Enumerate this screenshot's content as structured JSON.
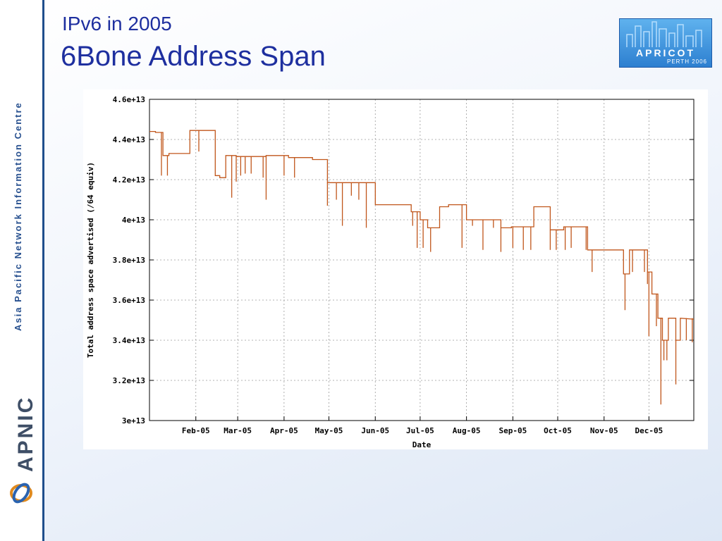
{
  "slide": {
    "subtitle": "IPv6 in 2005",
    "title": "6Bone Address Span",
    "sidebar_text": "Asia Pacific Network Information Centre",
    "sidebar_logo_text": "APNIC",
    "badge_title": "APRICOT",
    "badge_subtitle": "PERTH 2006"
  },
  "chart_data": {
    "type": "line",
    "xlabel": "Date",
    "ylabel": "Total address space advertised (/64 equiv)",
    "x_range": [
      "2005-01-01",
      "2005-12-31"
    ],
    "ylim": [
      30000000000000,
      46000000000000
    ],
    "grid": true,
    "y_ticks": [
      "3e+13",
      "3.2e+13",
      "3.4e+13",
      "3.6e+13",
      "3.8e+13",
      "4e+13",
      "4.2e+13",
      "4.4e+13",
      "4.6e+13"
    ],
    "y_tick_values": [
      30000000000000,
      32000000000000,
      34000000000000,
      36000000000000,
      38000000000000,
      40000000000000,
      42000000000000,
      44000000000000,
      46000000000000
    ],
    "x_ticks": [
      {
        "label": "Feb-05",
        "date": "2005-02-01"
      },
      {
        "label": "Mar-05",
        "date": "2005-03-01"
      },
      {
        "label": "Apr-05",
        "date": "2005-04-01"
      },
      {
        "label": "May-05",
        "date": "2005-05-01"
      },
      {
        "label": "Jun-05",
        "date": "2005-06-01"
      },
      {
        "label": "Jul-05",
        "date": "2005-07-01"
      },
      {
        "label": "Aug-05",
        "date": "2005-08-01"
      },
      {
        "label": "Sep-05",
        "date": "2005-09-01"
      },
      {
        "label": "Oct-05",
        "date": "2005-10-01"
      },
      {
        "label": "Nov-05",
        "date": "2005-11-01"
      },
      {
        "label": "Dec-05",
        "date": "2005-12-01"
      }
    ],
    "series": [
      {
        "color": "#c0561b",
        "points": [
          [
            "2005-01-01",
            44400000000000
          ],
          [
            "2005-01-05",
            44400000000000
          ],
          [
            "2005-01-05",
            44350000000000
          ],
          [
            "2005-01-10",
            44350000000000
          ],
          [
            "2005-01-10",
            43200000000000
          ],
          [
            "2005-01-14",
            43200000000000
          ],
          [
            "2005-01-14",
            43300000000000
          ],
          [
            "2005-01-28",
            43300000000000
          ],
          [
            "2005-01-28",
            44450000000000
          ],
          [
            "2005-02-14",
            44450000000000
          ],
          [
            "2005-02-14",
            42200000000000
          ],
          [
            "2005-02-17",
            42200000000000
          ],
          [
            "2005-02-17",
            42100000000000
          ],
          [
            "2005-02-21",
            42100000000000
          ],
          [
            "2005-02-21",
            43200000000000
          ],
          [
            "2005-02-28",
            43200000000000
          ],
          [
            "2005-02-28",
            43150000000000
          ],
          [
            "2005-03-20",
            43150000000000
          ],
          [
            "2005-03-20",
            43200000000000
          ],
          [
            "2005-04-04",
            43200000000000
          ],
          [
            "2005-04-04",
            43100000000000
          ],
          [
            "2005-04-20",
            43100000000000
          ],
          [
            "2005-04-20",
            43000000000000
          ],
          [
            "2005-04-30",
            43000000000000
          ],
          [
            "2005-04-30",
            41850000000000
          ],
          [
            "2005-06-01",
            41850000000000
          ],
          [
            "2005-06-01",
            40750000000000
          ],
          [
            "2005-06-25",
            40750000000000
          ],
          [
            "2005-06-25",
            40400000000000
          ],
          [
            "2005-07-01",
            40400000000000
          ],
          [
            "2005-07-01",
            40000000000000
          ],
          [
            "2005-07-06",
            40000000000000
          ],
          [
            "2005-07-06",
            39600000000000
          ],
          [
            "2005-07-14",
            39600000000000
          ],
          [
            "2005-07-14",
            40650000000000
          ],
          [
            "2005-07-20",
            40650000000000
          ],
          [
            "2005-07-20",
            40750000000000
          ],
          [
            "2005-08-01",
            40750000000000
          ],
          [
            "2005-08-01",
            40000000000000
          ],
          [
            "2005-08-24",
            40000000000000
          ],
          [
            "2005-08-24",
            39600000000000
          ],
          [
            "2005-08-31",
            39600000000000
          ],
          [
            "2005-08-31",
            39650000000000
          ],
          [
            "2005-09-15",
            39650000000000
          ],
          [
            "2005-09-15",
            40650000000000
          ],
          [
            "2005-09-26",
            40650000000000
          ],
          [
            "2005-09-26",
            39500000000000
          ],
          [
            "2005-10-05",
            39500000000000
          ],
          [
            "2005-10-05",
            39650000000000
          ],
          [
            "2005-10-21",
            39650000000000
          ],
          [
            "2005-10-21",
            38500000000000
          ],
          [
            "2005-11-14",
            38500000000000
          ],
          [
            "2005-11-14",
            37300000000000
          ],
          [
            "2005-11-18",
            37300000000000
          ],
          [
            "2005-11-18",
            38500000000000
          ],
          [
            "2005-11-30",
            38500000000000
          ],
          [
            "2005-11-30",
            37400000000000
          ],
          [
            "2005-12-03",
            37400000000000
          ],
          [
            "2005-12-03",
            36300000000000
          ],
          [
            "2005-12-07",
            36300000000000
          ],
          [
            "2005-12-07",
            35100000000000
          ],
          [
            "2005-12-10",
            35100000000000
          ],
          [
            "2005-12-10",
            34000000000000
          ],
          [
            "2005-12-14",
            34000000000000
          ],
          [
            "2005-12-14",
            35100000000000
          ],
          [
            "2005-12-19",
            35100000000000
          ],
          [
            "2005-12-19",
            34000000000000
          ],
          [
            "2005-12-22",
            34000000000000
          ],
          [
            "2005-12-22",
            35100000000000
          ],
          [
            "2005-12-31",
            35050000000000
          ]
        ],
        "spikes": [
          [
            "2005-01-09",
            42200000000000
          ],
          [
            "2005-01-13",
            42200000000000
          ],
          [
            "2005-02-03",
            43400000000000
          ],
          [
            "2005-02-25",
            41100000000000
          ],
          [
            "2005-02-28",
            41900000000000
          ],
          [
            "2005-03-03",
            42200000000000
          ],
          [
            "2005-03-06",
            42300000000000
          ],
          [
            "2005-03-10",
            42300000000000
          ],
          [
            "2005-03-18",
            42100000000000
          ],
          [
            "2005-03-20",
            41000000000000
          ],
          [
            "2005-04-01",
            42200000000000
          ],
          [
            "2005-04-08",
            42100000000000
          ],
          [
            "2005-04-30",
            40700000000000
          ],
          [
            "2005-05-06",
            41000000000000
          ],
          [
            "2005-05-10",
            39700000000000
          ],
          [
            "2005-05-16",
            41200000000000
          ],
          [
            "2005-05-21",
            41000000000000
          ],
          [
            "2005-05-26",
            39600000000000
          ],
          [
            "2005-06-26",
            39700000000000
          ],
          [
            "2005-06-29",
            38600000000000
          ],
          [
            "2005-07-03",
            38600000000000
          ],
          [
            "2005-07-08",
            38400000000000
          ],
          [
            "2005-07-29",
            38600000000000
          ],
          [
            "2005-08-05",
            39700000000000
          ],
          [
            "2005-08-12",
            38500000000000
          ],
          [
            "2005-08-19",
            39600000000000
          ],
          [
            "2005-08-24",
            38400000000000
          ],
          [
            "2005-09-01",
            38600000000000
          ],
          [
            "2005-09-08",
            38500000000000
          ],
          [
            "2005-09-13",
            38500000000000
          ],
          [
            "2005-09-26",
            38500000000000
          ],
          [
            "2005-09-30",
            38500000000000
          ],
          [
            "2005-10-06",
            38500000000000
          ],
          [
            "2005-10-10",
            38600000000000
          ],
          [
            "2005-10-20",
            38500000000000
          ],
          [
            "2005-10-24",
            37400000000000
          ],
          [
            "2005-11-15",
            35500000000000
          ],
          [
            "2005-11-20",
            37400000000000
          ],
          [
            "2005-11-28",
            37400000000000
          ],
          [
            "2005-11-30",
            36800000000000
          ],
          [
            "2005-12-01",
            34200000000000
          ],
          [
            "2005-12-04",
            36300000000000
          ],
          [
            "2005-12-06",
            34700000000000
          ],
          [
            "2005-12-09",
            30800000000000
          ],
          [
            "2005-12-11",
            33000000000000
          ],
          [
            "2005-12-13",
            33000000000000
          ],
          [
            "2005-12-19",
            31800000000000
          ],
          [
            "2005-12-26",
            34000000000000
          ],
          [
            "2005-12-30",
            33900000000000
          ]
        ]
      }
    ]
  }
}
